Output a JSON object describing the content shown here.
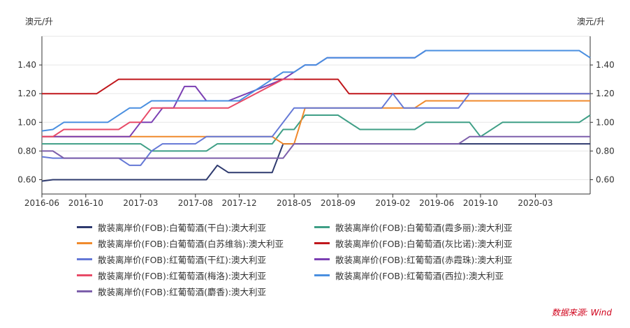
{
  "chart_data": {
    "type": "line",
    "ylabel_left": "澳元/升",
    "ylabel_right": "澳元/升",
    "ylim": [
      0.5,
      1.6
    ],
    "yticks": [
      "0.60",
      "0.80",
      "1.00",
      "1.20",
      "1.40"
    ],
    "ytick_values": [
      0.6,
      0.8,
      1.0,
      1.2,
      1.4
    ],
    "xlim": [
      "2016-06",
      "2020-08"
    ],
    "xticks": [
      "2016-06",
      "2016-10",
      "2017-03",
      "2017-08",
      "2017-12",
      "2018-05",
      "2018-09",
      "2019-02",
      "2019-06",
      "2019-10",
      "2020-03"
    ],
    "grid": true,
    "series": [
      {
        "name": "散装离岸价(FOB):白葡萄酒(干白):澳大利亚",
        "color": "#2e3a6e",
        "points": [
          [
            "2016-06",
            0.59
          ],
          [
            "2016-07",
            0.6
          ],
          [
            "2017-09",
            0.6
          ],
          [
            "2017-10",
            0.7
          ],
          [
            "2017-11",
            0.65
          ],
          [
            "2018-03",
            0.65
          ],
          [
            "2018-04",
            0.85
          ],
          [
            "2020-08",
            0.85
          ]
        ]
      },
      {
        "name": "散装离岸价(FOB):白葡萄酒(霞多丽):澳大利亚",
        "color": "#3f9f86",
        "points": [
          [
            "2016-06",
            0.85
          ],
          [
            "2017-03",
            0.85
          ],
          [
            "2017-04",
            0.8
          ],
          [
            "2017-09",
            0.8
          ],
          [
            "2017-10",
            0.85
          ],
          [
            "2018-03",
            0.85
          ],
          [
            "2018-04",
            0.95
          ],
          [
            "2018-05",
            0.95
          ],
          [
            "2018-06",
            1.05
          ],
          [
            "2018-09",
            1.05
          ],
          [
            "2018-11",
            0.95
          ],
          [
            "2019-04",
            0.95
          ],
          [
            "2019-05",
            1.0
          ],
          [
            "2019-09",
            1.0
          ],
          [
            "2019-10",
            0.9
          ],
          [
            "2019-12",
            1.0
          ],
          [
            "2020-07",
            1.0
          ],
          [
            "2020-08",
            1.05
          ]
        ]
      },
      {
        "name": "散装离岸价(FOB):白葡萄酒(白苏维翁):澳大利亚",
        "color": "#f08a2c",
        "points": [
          [
            "2016-06",
            0.9
          ],
          [
            "2017-10",
            0.9
          ],
          [
            "2018-03",
            0.9
          ],
          [
            "2018-04",
            0.85
          ],
          [
            "2018-05",
            0.85
          ],
          [
            "2018-06",
            1.1
          ],
          [
            "2019-04",
            1.1
          ],
          [
            "2019-05",
            1.15
          ],
          [
            "2020-08",
            1.15
          ]
        ]
      },
      {
        "name": "散装离岸价(FOB):白葡萄酒(灰比诺):澳大利亚",
        "color": "#c0171c",
        "points": [
          [
            "2016-06",
            1.2
          ],
          [
            "2016-11",
            1.2
          ],
          [
            "2017-01",
            1.3
          ],
          [
            "2018-09",
            1.3
          ],
          [
            "2018-10",
            1.2
          ],
          [
            "2020-08",
            1.2
          ]
        ]
      },
      {
        "name": "散装离岸价(FOB):红葡萄酒(干红):澳大利亚",
        "color": "#6478d6",
        "points": [
          [
            "2016-06",
            0.76
          ],
          [
            "2016-07",
            0.75
          ],
          [
            "2017-01",
            0.75
          ],
          [
            "2017-02",
            0.7
          ],
          [
            "2017-03",
            0.7
          ],
          [
            "2017-04",
            0.8
          ],
          [
            "2017-05",
            0.85
          ],
          [
            "2017-08",
            0.85
          ],
          [
            "2017-09",
            0.9
          ],
          [
            "2018-01",
            0.9
          ],
          [
            "2018-03",
            0.9
          ],
          [
            "2018-05",
            1.1
          ],
          [
            "2019-01",
            1.1
          ],
          [
            "2019-02",
            1.2
          ],
          [
            "2019-03",
            1.1
          ],
          [
            "2019-08",
            1.1
          ],
          [
            "2019-09",
            1.2
          ],
          [
            "2020-08",
            1.2
          ]
        ]
      },
      {
        "name": "散装离岸价(FOB):红葡萄酒(赤霞珠):澳大利亚",
        "color": "#7b3fb3",
        "points": [
          [
            "2016-06",
            0.9
          ],
          [
            "2017-02",
            0.9
          ],
          [
            "2017-03",
            1.0
          ],
          [
            "2017-04",
            1.0
          ],
          [
            "2017-05",
            1.1
          ],
          [
            "2017-06",
            1.1
          ],
          [
            "2017-07",
            1.25
          ],
          [
            "2017-08",
            1.25
          ],
          [
            "2017-09",
            1.15
          ],
          [
            "2017-11",
            1.15
          ],
          [
            "2018-04",
            1.3
          ],
          [
            "2018-06",
            1.4
          ],
          [
            "2018-07",
            1.4
          ],
          [
            "2018-08",
            1.45
          ],
          [
            "2019-04",
            1.45
          ],
          [
            "2019-05",
            1.5
          ],
          [
            "2019-10",
            1.5
          ],
          [
            "2019-11",
            1.5
          ]
        ]
      },
      {
        "name": "散装离岸价(FOB):红葡萄酒(梅洛):澳大利亚",
        "color": "#e84a67",
        "points": [
          [
            "2016-06",
            0.9
          ],
          [
            "2016-07",
            0.9
          ],
          [
            "2016-08",
            0.95
          ],
          [
            "2017-01",
            0.95
          ],
          [
            "2017-02",
            1.0
          ],
          [
            "2017-03",
            1.0
          ],
          [
            "2017-04",
            1.1
          ],
          [
            "2017-11",
            1.1
          ],
          [
            "2018-04",
            1.3
          ],
          [
            "2018-05",
            1.3
          ]
        ]
      },
      {
        "name": "散装离岸价(FOB):红葡萄酒(西拉):澳大利亚",
        "color": "#4a8fe0",
        "points": [
          [
            "2016-06",
            0.94
          ],
          [
            "2016-07",
            0.95
          ],
          [
            "2016-08",
            1.0
          ],
          [
            "2016-12",
            1.0
          ],
          [
            "2017-02",
            1.1
          ],
          [
            "2017-03",
            1.1
          ],
          [
            "2017-04",
            1.15
          ],
          [
            "2017-12",
            1.15
          ],
          [
            "2018-03",
            1.3
          ],
          [
            "2018-04",
            1.35
          ],
          [
            "2018-05",
            1.35
          ],
          [
            "2018-06",
            1.4
          ],
          [
            "2018-07",
            1.4
          ],
          [
            "2018-08",
            1.45
          ],
          [
            "2019-04",
            1.45
          ],
          [
            "2019-05",
            1.5
          ],
          [
            "2020-07",
            1.5
          ],
          [
            "2020-08",
            1.45
          ]
        ]
      },
      {
        "name": "散装离岸价(FOB):红葡萄酒(麝香):澳大利亚",
        "color": "#7d5fab",
        "points": [
          [
            "2016-06",
            0.8
          ],
          [
            "2016-07",
            0.8
          ],
          [
            "2016-08",
            0.75
          ],
          [
            "2018-04",
            0.75
          ],
          [
            "2018-05",
            0.85
          ],
          [
            "2019-08",
            0.85
          ],
          [
            "2019-09",
            0.9
          ],
          [
            "2020-08",
            0.9
          ]
        ]
      }
    ]
  },
  "watermark": "Wind",
  "source": "数据来源: Wind"
}
